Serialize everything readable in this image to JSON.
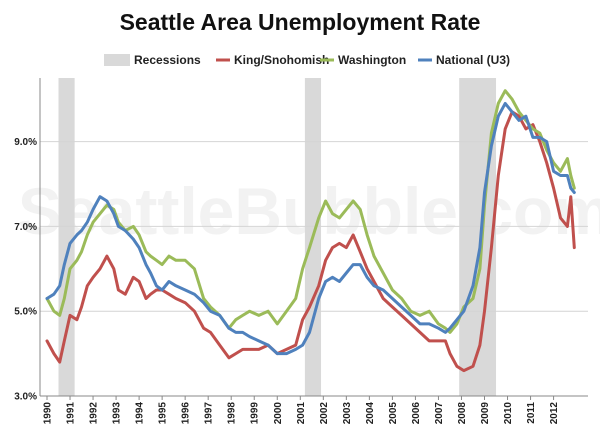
{
  "chart_data": {
    "type": "line",
    "title": "Seattle Area Unemployment Rate",
    "watermark": "SeattleBubble.com",
    "xlabel": "",
    "ylabel": "",
    "ylim": [
      3.0,
      10.5
    ],
    "xlim": [
      1990.0,
      2013.0
    ],
    "grid": "horizontal",
    "legend_position": "top",
    "yticks": [
      {
        "value": 3.0,
        "label": "3.0%"
      },
      {
        "value": 5.0,
        "label": "5.0%"
      },
      {
        "value": 7.0,
        "label": "7.0%"
      },
      {
        "value": 9.0,
        "label": "9.0%"
      }
    ],
    "xticks": [
      {
        "value": 1990,
        "label": "1990"
      },
      {
        "value": 1991,
        "label": "1991"
      },
      {
        "value": 1992,
        "label": "1992"
      },
      {
        "value": 1993,
        "label": "1993"
      },
      {
        "value": 1994,
        "label": "1994"
      },
      {
        "value": 1995,
        "label": "1995"
      },
      {
        "value": 1996,
        "label": "1996"
      },
      {
        "value": 1997,
        "label": "1997"
      },
      {
        "value": 1998,
        "label": "1998"
      },
      {
        "value": 1999,
        "label": "1999"
      },
      {
        "value": 2000,
        "label": "2000"
      },
      {
        "value": 2001,
        "label": "2001"
      },
      {
        "value": 2002,
        "label": "2002"
      },
      {
        "value": 2003,
        "label": "2003"
      },
      {
        "value": 2004,
        "label": "2004"
      },
      {
        "value": 2005,
        "label": "2005"
      },
      {
        "value": 2006,
        "label": "2006"
      },
      {
        "value": 2007,
        "label": "2007"
      },
      {
        "value": 2008,
        "label": "2008"
      },
      {
        "value": 2009,
        "label": "2009"
      },
      {
        "value": 2010,
        "label": "2010"
      },
      {
        "value": 2011,
        "label": "2011"
      },
      {
        "value": 2012,
        "label": "2012"
      }
    ],
    "recessions": {
      "name": "Recessions",
      "color": "#d9d9d9",
      "periods": [
        [
          1990.5,
          1991.2
        ],
        [
          2001.2,
          2001.9
        ],
        [
          2007.9,
          2009.5
        ]
      ]
    },
    "series": [
      {
        "name": "King/Snohomish",
        "color": "#c0504d",
        "x": [
          1990.0,
          1990.3,
          1990.55,
          1990.75,
          1991.0,
          1991.3,
          1991.5,
          1991.75,
          1992.0,
          1992.3,
          1992.6,
          1992.9,
          1993.1,
          1993.4,
          1993.75,
          1994.0,
          1994.3,
          1994.5,
          1994.75,
          1995.0,
          1995.3,
          1995.6,
          1996.0,
          1996.4,
          1996.8,
          1997.1,
          1997.5,
          1997.9,
          1998.2,
          1998.5,
          1998.8,
          1999.2,
          1999.6,
          2000.0,
          2000.4,
          2000.8,
          2001.1,
          2001.4,
          2001.8,
          2002.1,
          2002.4,
          2002.7,
          2003.0,
          2003.3,
          2003.6,
          2003.9,
          2004.2,
          2004.6,
          2005.0,
          2005.4,
          2005.8,
          2006.2,
          2006.6,
          2007.0,
          2007.3,
          2007.5,
          2007.8,
          2008.1,
          2008.5,
          2008.8,
          2009.0,
          2009.3,
          2009.6,
          2009.9,
          2010.2,
          2010.5,
          2010.8,
          2011.1,
          2011.4,
          2011.7,
          2012.0,
          2012.3,
          2012.6,
          2012.75,
          2012.9
        ],
        "values": [
          4.3,
          4.0,
          3.8,
          4.3,
          4.9,
          4.8,
          5.1,
          5.6,
          5.8,
          6.0,
          6.3,
          6.0,
          5.5,
          5.4,
          5.8,
          5.7,
          5.3,
          5.4,
          5.5,
          5.5,
          5.4,
          5.3,
          5.2,
          5.0,
          4.6,
          4.5,
          4.2,
          3.9,
          4.0,
          4.1,
          4.1,
          4.1,
          4.2,
          4.0,
          4.1,
          4.2,
          4.8,
          5.1,
          5.6,
          6.2,
          6.5,
          6.6,
          6.5,
          6.8,
          6.4,
          6.0,
          5.7,
          5.3,
          5.1,
          4.9,
          4.7,
          4.5,
          4.3,
          4.3,
          4.3,
          4.0,
          3.7,
          3.6,
          3.7,
          4.2,
          5.0,
          6.5,
          8.2,
          9.3,
          9.7,
          9.6,
          9.3,
          9.4,
          9.0,
          8.5,
          7.9,
          7.2,
          7.0,
          7.7,
          6.5
        ]
      },
      {
        "name": "Washington",
        "color": "#9bbb59",
        "x": [
          1990.0,
          1990.3,
          1990.55,
          1990.75,
          1991.0,
          1991.3,
          1991.5,
          1991.75,
          1992.0,
          1992.3,
          1992.6,
          1992.9,
          1993.1,
          1993.4,
          1993.75,
          1994.0,
          1994.3,
          1994.5,
          1994.75,
          1995.0,
          1995.3,
          1995.6,
          1996.0,
          1996.4,
          1996.8,
          1997.1,
          1997.5,
          1997.9,
          1998.2,
          1998.5,
          1998.8,
          1999.2,
          1999.6,
          2000.0,
          2000.4,
          2000.8,
          2001.1,
          2001.4,
          2001.8,
          2002.1,
          2002.4,
          2002.7,
          2003.0,
          2003.3,
          2003.6,
          2003.9,
          2004.2,
          2004.6,
          2005.0,
          2005.4,
          2005.8,
          2006.2,
          2006.6,
          2007.0,
          2007.3,
          2007.5,
          2007.8,
          2008.1,
          2008.5,
          2008.8,
          2009.0,
          2009.3,
          2009.6,
          2009.9,
          2010.2,
          2010.5,
          2010.8,
          2011.1,
          2011.4,
          2011.7,
          2012.0,
          2012.3,
          2012.6,
          2012.75,
          2012.9
        ],
        "values": [
          5.3,
          5.0,
          4.9,
          5.3,
          6.0,
          6.2,
          6.4,
          6.8,
          7.1,
          7.3,
          7.5,
          7.4,
          7.1,
          6.9,
          7.0,
          6.8,
          6.4,
          6.3,
          6.2,
          6.1,
          6.3,
          6.2,
          6.2,
          6.0,
          5.3,
          5.1,
          4.9,
          4.6,
          4.8,
          4.9,
          5.0,
          4.9,
          5.0,
          4.7,
          5.0,
          5.3,
          6.0,
          6.5,
          7.2,
          7.6,
          7.3,
          7.2,
          7.4,
          7.6,
          7.4,
          6.8,
          6.3,
          5.9,
          5.5,
          5.3,
          5.0,
          4.9,
          5.0,
          4.7,
          4.6,
          4.5,
          4.7,
          5.1,
          5.3,
          6.0,
          7.5,
          9.2,
          9.9,
          10.2,
          10.0,
          9.7,
          9.5,
          9.3,
          9.2,
          8.8,
          8.5,
          8.3,
          8.6,
          8.2,
          7.9
        ]
      },
      {
        "name": "National (U3)",
        "color": "#4f81bd",
        "x": [
          1990.0,
          1990.3,
          1990.55,
          1990.75,
          1991.0,
          1991.3,
          1991.5,
          1991.75,
          1992.0,
          1992.3,
          1992.6,
          1992.9,
          1993.1,
          1993.4,
          1993.75,
          1994.0,
          1994.3,
          1994.5,
          1994.75,
          1995.0,
          1995.3,
          1995.6,
          1996.0,
          1996.4,
          1996.8,
          1997.1,
          1997.5,
          1997.9,
          1998.2,
          1998.5,
          1998.8,
          1999.2,
          1999.6,
          2000.0,
          2000.4,
          2000.8,
          2001.1,
          2001.4,
          2001.8,
          2002.1,
          2002.4,
          2002.7,
          2003.0,
          2003.3,
          2003.6,
          2003.9,
          2004.2,
          2004.6,
          2005.0,
          2005.4,
          2005.8,
          2006.2,
          2006.6,
          2007.0,
          2007.3,
          2007.5,
          2007.8,
          2008.1,
          2008.5,
          2008.8,
          2009.0,
          2009.3,
          2009.6,
          2009.9,
          2010.2,
          2010.5,
          2010.8,
          2011.1,
          2011.4,
          2011.7,
          2012.0,
          2012.3,
          2012.6,
          2012.75,
          2012.9
        ],
        "values": [
          5.3,
          5.4,
          5.6,
          6.1,
          6.6,
          6.8,
          6.9,
          7.1,
          7.4,
          7.7,
          7.6,
          7.3,
          7.0,
          6.9,
          6.7,
          6.5,
          6.1,
          5.9,
          5.6,
          5.5,
          5.7,
          5.6,
          5.5,
          5.4,
          5.2,
          5.0,
          4.9,
          4.6,
          4.5,
          4.5,
          4.4,
          4.3,
          4.2,
          4.0,
          4.0,
          4.1,
          4.2,
          4.5,
          5.3,
          5.7,
          5.8,
          5.7,
          5.9,
          6.1,
          6.1,
          5.8,
          5.6,
          5.5,
          5.3,
          5.1,
          4.9,
          4.7,
          4.7,
          4.6,
          4.5,
          4.6,
          4.8,
          5.0,
          5.6,
          6.5,
          7.8,
          8.9,
          9.6,
          9.9,
          9.7,
          9.5,
          9.6,
          9.1,
          9.1,
          9.0,
          8.3,
          8.2,
          8.2,
          7.9,
          7.8
        ]
      }
    ]
  }
}
